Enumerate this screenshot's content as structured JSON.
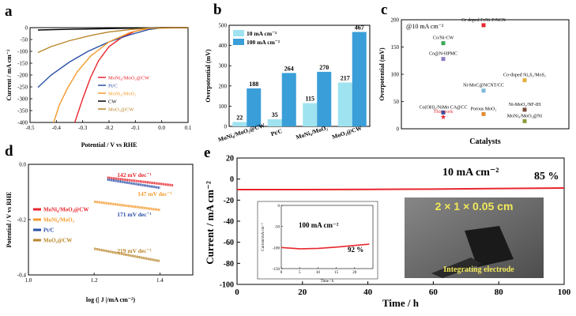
{
  "panels": {
    "a": "a",
    "b": "b",
    "c": "c",
    "d": "d",
    "e": "e"
  },
  "chart_data": [
    {
      "panel": "a",
      "type": "line",
      "xlabel": "Potential / V vs RHE",
      "ylabel": "Current / mA cm⁻²",
      "xlim": [
        -0.5,
        0.1
      ],
      "ylim": [
        -400,
        0
      ],
      "xticks": [
        "-0.5",
        "-0.4",
        "-0.3",
        "-0.2",
        "-0.1",
        "0.0",
        "0.1"
      ],
      "yticks": [
        "0",
        "-50",
        "-100",
        "-150",
        "-200",
        "-250",
        "-300",
        "-350",
        "-400"
      ],
      "legend_position": "center-left",
      "series": [
        {
          "name": "MoNi₄/MoO₂@CW",
          "color": "#e8262d",
          "points": [
            [
              -0.33,
              -400
            ],
            [
              -0.3,
              -300
            ],
            [
              -0.27,
              -210
            ],
            [
              -0.24,
              -140
            ],
            [
              -0.2,
              -80
            ],
            [
              -0.15,
              -40
            ],
            [
              -0.1,
              -15
            ],
            [
              -0.05,
              -3
            ],
            [
              0,
              0
            ],
            [
              0.1,
              0
            ]
          ]
        },
        {
          "name": "Pt/C",
          "color": "#2b4fa8",
          "points": [
            [
              -0.47,
              -252
            ],
            [
              -0.42,
              -200
            ],
            [
              -0.35,
              -145
            ],
            [
              -0.28,
              -100
            ],
            [
              -0.2,
              -60
            ],
            [
              -0.12,
              -30
            ],
            [
              -0.05,
              -8
            ],
            [
              0,
              -1
            ],
            [
              0.1,
              0
            ]
          ]
        },
        {
          "name": "MoNi₄/MoO₂",
          "color": "#f39a2d",
          "points": [
            [
              -0.41,
              -400
            ],
            [
              -0.39,
              -330
            ],
            [
              -0.36,
              -260
            ],
            [
              -0.32,
              -185
            ],
            [
              -0.27,
              -120
            ],
            [
              -0.2,
              -60
            ],
            [
              -0.12,
              -20
            ],
            [
              -0.05,
              -3
            ],
            [
              0.1,
              0
            ]
          ]
        },
        {
          "name": "CW",
          "color": "#000000",
          "points": [
            [
              -0.47,
              -10
            ],
            [
              -0.35,
              -7
            ],
            [
              -0.2,
              -4
            ],
            [
              -0.1,
              -2
            ],
            [
              0,
              0
            ],
            [
              0.1,
              0
            ]
          ]
        },
        {
          "name": "MoO₂@CW",
          "color": "#b8862a",
          "points": [
            [
              -0.47,
              -105
            ],
            [
              -0.42,
              -80
            ],
            [
              -0.35,
              -55
            ],
            [
              -0.27,
              -33
            ],
            [
              -0.2,
              -18
            ],
            [
              -0.12,
              -8
            ],
            [
              -0.05,
              -2
            ],
            [
              0.1,
              0
            ]
          ]
        }
      ]
    },
    {
      "panel": "b",
      "type": "bar",
      "ylabel": "Overpotential (mV)",
      "ylim": [
        0,
        500
      ],
      "yticks": [
        "0",
        "100",
        "200",
        "300",
        "400",
        "500"
      ],
      "categories": [
        "MoNi₄/MoO₂@CW",
        "Pt/C",
        "MoNi₄/MoO₂",
        "MoO₂@CW"
      ],
      "legend_position": "top-left",
      "series": [
        {
          "name": "10 mA cm⁻²",
          "color": "#9fe3f0",
          "values": [
            22,
            35,
            115,
            217
          ]
        },
        {
          "name": "100 mA cm⁻²",
          "color": "#3a9ed8",
          "values": [
            188,
            264,
            270,
            467
          ]
        }
      ]
    },
    {
      "panel": "c",
      "type": "scatter",
      "xlabel": "Catalysts",
      "ylabel": "Overpotential (mV)",
      "ylim": [
        0,
        200
      ],
      "yticks": [
        "0",
        "50",
        "100",
        "150",
        "200"
      ],
      "annotation": "@10 mA cm⁻²",
      "points": [
        {
          "label": "Cr-doped FeNi-P/NCN",
          "value": 190,
          "color": "#e8262d"
        },
        {
          "label": "Co/Ni-CW",
          "value": 157,
          "color": "#3aa85a"
        },
        {
          "label": "Co@N-HPMC",
          "value": 128,
          "color": "#8e7cc3"
        },
        {
          "label": "Co-doped Ni₃S₂/MoS₂",
          "value": 89,
          "color": "#e0b040"
        },
        {
          "label": "Ni-MoC@NCNT/CC",
          "value": 70,
          "color": "#7ab8d9"
        },
        {
          "label": "Ni-MoO₂/NF-IH",
          "value": 35,
          "color": "#7a4a3a"
        },
        {
          "label": "Co(OH)₂/NiMo CA@CC",
          "value": 30,
          "color": "#2b4fa8"
        },
        {
          "label": "Porous MoO₂",
          "value": 27,
          "color": "#e08a30"
        },
        {
          "label": "This work",
          "value": 22,
          "color": "#e8262d",
          "marker": "star"
        },
        {
          "label": "MoNi₄/MoO₂@Ni",
          "value": 14,
          "color": "#8a9a3a"
        }
      ]
    },
    {
      "panel": "d",
      "type": "line",
      "xlabel": "log (| J |/mA cm⁻²)",
      "ylabel": "Potential / V vs RHE",
      "xlim": [
        1.0,
        1.5
      ],
      "ylim": [
        -0.4,
        0.0
      ],
      "xticks": [
        "1.0",
        "1.2",
        "1.4"
      ],
      "yticks": [
        "0.0",
        "-0.2",
        "-0.4"
      ],
      "legend_position": "center-left",
      "series": [
        {
          "name": "MoNi₄/MoO₂@CW",
          "color": "#e8262d",
          "slope_label": "142 mV dec⁻¹",
          "points": [
            [
              1.24,
              -0.048
            ],
            [
              1.44,
              -0.076
            ]
          ]
        },
        {
          "name": "MoNi₄/MoO₂",
          "color": "#f39a2d",
          "slope_label": "147 mV dec⁻¹",
          "points": [
            [
              1.2,
              -0.135
            ],
            [
              1.4,
              -0.165
            ]
          ]
        },
        {
          "name": "Pt/C",
          "color": "#2b4fa8",
          "slope_label": "171 mV dec⁻¹",
          "points": [
            [
              1.24,
              -0.055
            ],
            [
              1.4,
              -0.085
            ]
          ]
        },
        {
          "name": "MoO₂@CW",
          "color": "#b8862a",
          "slope_label": "219 mV dec⁻¹",
          "points": [
            [
              1.2,
              -0.305
            ],
            [
              1.4,
              -0.35
            ]
          ]
        }
      ]
    },
    {
      "panel": "e",
      "type": "line",
      "xlabel": "Time / h",
      "ylabel": "Current / mA cm⁻²",
      "xlim": [
        0,
        100
      ],
      "ylim": [
        -100,
        20
      ],
      "xticks": [
        "0",
        "20",
        "40",
        "60",
        "80",
        "100"
      ],
      "yticks": [
        "20",
        "0",
        "-20",
        "-40",
        "-60",
        "-80",
        "-100"
      ],
      "annotation": "10 mA cm⁻²",
      "retention": "85 %",
      "series": [
        {
          "name": "",
          "color": "#e8262d",
          "points": [
            [
              0,
              -10
            ],
            [
              20,
              -10
            ],
            [
              40,
              -9.8
            ],
            [
              60,
              -9.5
            ],
            [
              80,
              -9
            ],
            [
              100,
              -8.5
            ]
          ]
        }
      ],
      "inset": {
        "xlabel": "Time / h",
        "ylabel": "Current/mA cm⁻²",
        "xlim": [
          0,
          25
        ],
        "ylim": [
          -150,
          0
        ],
        "xticks": [
          "0",
          "5",
          "10",
          "15",
          "20"
        ],
        "yticks": [
          "0",
          "-50",
          "-100",
          "-150"
        ],
        "annotation": "100 mA cm⁻²",
        "retention": "92 %",
        "points": [
          [
            0,
            -100
          ],
          [
            5,
            -103
          ],
          [
            10,
            -102
          ],
          [
            15,
            -99
          ],
          [
            20,
            -95
          ],
          [
            24,
            -92
          ]
        ]
      },
      "photo": {
        "dimension_label": "2 × 1 × 0.05 cm",
        "caption": "Integrating electrode"
      }
    }
  ]
}
